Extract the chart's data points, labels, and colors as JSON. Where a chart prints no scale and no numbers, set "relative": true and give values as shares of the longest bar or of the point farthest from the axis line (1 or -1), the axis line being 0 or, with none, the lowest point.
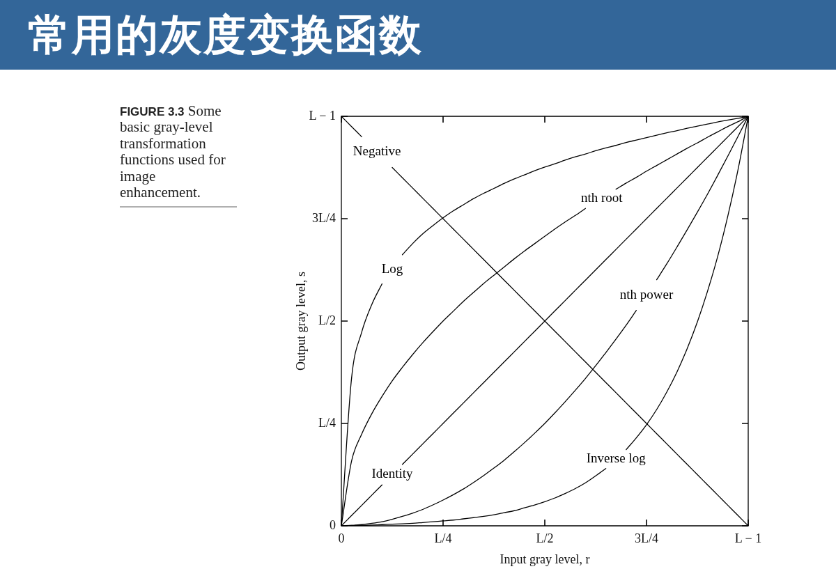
{
  "chart_data": {
    "type": "line",
    "title": "常用的灰度变换函数",
    "annotations": [
      "FIGURE 3.3 Some basic gray-level transformation functions used for image enhancement.",
      "0",
      "L/4",
      "L/2",
      "3L/4",
      "L − 1"
    ],
    "xlabel": "Input gray level, r",
    "ylabel": "Output gray level, s",
    "categories": [
      "0",
      null,
      null,
      null,
      null,
      null,
      null,
      null,
      null,
      null,
      "L/4",
      null,
      null,
      null,
      null,
      null,
      null,
      null,
      null,
      null,
      "L/2",
      null,
      null,
      null,
      null,
      null,
      null,
      null,
      null,
      null,
      "3L/4",
      null,
      null,
      null,
      null,
      null,
      null,
      null,
      null,
      null,
      "L − 1"
    ],
    "relative": true,
    "legend": false,
    "marker": "none",
    "line_style": "solid",
    "series": [
      {
        "name": "Negative",
        "color": "#000000",
        "values": [
          1,
          0.975,
          0.95,
          null,
          null,
          0.875,
          0.85,
          0.825,
          0.8,
          0.775,
          0.75,
          0.725,
          0.7,
          0.675,
          0.65,
          0.625,
          0.6,
          0.575,
          0.55,
          0.525,
          0.5,
          0.475,
          0.45,
          0.425,
          0.4,
          0.375,
          0.35,
          0.325,
          0.3,
          0.275,
          0.25,
          0.225,
          0.2,
          0.175,
          0.15,
          0.125,
          0.1,
          0.075,
          0.05,
          0.025,
          0
        ]
      },
      {
        "name": "Log",
        "color": "#000000",
        "values": [
          0,
          0.36,
          0.473,
          0.541,
          0.591,
          null,
          0.662,
          0.689,
          0.713,
          0.733,
          0.752,
          0.769,
          0.784,
          0.799,
          0.812,
          0.824,
          0.836,
          0.847,
          0.857,
          0.867,
          0.876,
          0.884,
          0.893,
          0.901,
          0.908,
          0.916,
          0.923,
          0.929,
          0.936,
          0.942,
          0.948,
          0.954,
          0.96,
          0.965,
          0.971,
          0.976,
          0.981,
          0.986,
          0.991,
          0.995,
          1
        ]
      },
      {
        "name": "nth root",
        "color": "#000000",
        "values": [
          0,
          0.158,
          0.224,
          0.274,
          0.316,
          0.354,
          0.387,
          0.418,
          0.447,
          0.474,
          0.5,
          0.524,
          0.548,
          0.57,
          0.592,
          0.612,
          0.632,
          0.652,
          0.671,
          0.689,
          0.707,
          0.725,
          0.742,
          0.758,
          0.775,
          null,
          null,
          0.822,
          0.837,
          0.851,
          0.866,
          0.88,
          0.894,
          0.908,
          0.922,
          0.935,
          0.949,
          0.962,
          0.975,
          0.987,
          1
        ]
      },
      {
        "name": "Identity",
        "color": "#000000",
        "values": [
          0,
          0.025,
          0.05,
          0.075,
          0.1,
          null,
          0.15,
          0.175,
          0.2,
          0.225,
          0.25,
          0.275,
          0.3,
          0.325,
          0.35,
          0.375,
          0.4,
          0.425,
          0.45,
          0.475,
          0.5,
          0.525,
          0.55,
          0.575,
          0.6,
          0.625,
          0.65,
          0.675,
          0.7,
          0.725,
          0.75,
          0.775,
          0.8,
          0.825,
          0.85,
          0.875,
          0.9,
          0.925,
          0.95,
          0.975,
          1
        ]
      },
      {
        "name": "nth power",
        "color": "#000000",
        "values": [
          0,
          0.001,
          0.003,
          0.006,
          0.01,
          0.016,
          0.023,
          0.031,
          0.04,
          0.051,
          0.063,
          0.076,
          0.09,
          0.106,
          0.123,
          0.141,
          0.16,
          0.181,
          0.203,
          0.226,
          0.25,
          0.276,
          0.303,
          0.331,
          0.36,
          0.391,
          0.423,
          0.456,
          0.49,
          0.526,
          null,
          0.601,
          0.64,
          0.681,
          0.723,
          0.766,
          0.81,
          0.856,
          0.903,
          0.951,
          1
        ]
      },
      {
        "name": "Inverse log",
        "color": "#000000",
        "values": [
          0,
          0.001,
          0.001,
          0.002,
          0.003,
          0.004,
          0.005,
          0.006,
          0.008,
          0.01,
          0.012,
          0.014,
          0.017,
          0.02,
          0.023,
          0.027,
          0.032,
          0.037,
          0.044,
          0.051,
          0.059,
          0.068,
          0.079,
          0.091,
          0.105,
          0.122,
          0.14,
          null,
          0.186,
          0.215,
          0.247,
          0.284,
          0.327,
          0.376,
          0.433,
          0.498,
          0.573,
          0.658,
          0.757,
          0.87,
          1
        ]
      }
    ]
  }
}
